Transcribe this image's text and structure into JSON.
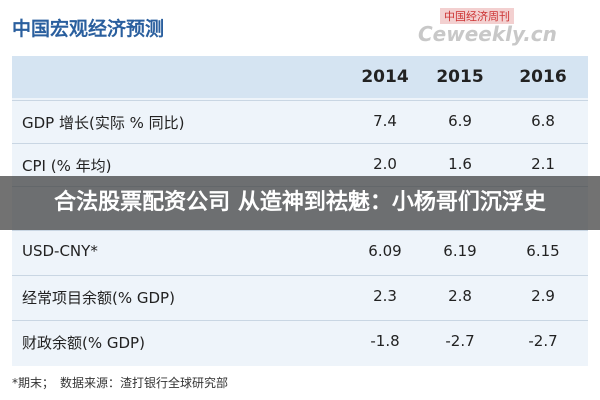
{
  "header": {
    "title": "中国宏观经济预测",
    "watermark_top": "中国经济周刊",
    "watermark": "Ceweekly.cn"
  },
  "table": {
    "columns": [
      "2014",
      "2015",
      "2016"
    ],
    "rows": [
      [
        "GDP 增长(实际 % 同比)",
        "7.4",
        "6.9",
        "6.8"
      ],
      [
        "CPI (% 年均)",
        "2.0",
        "1.6",
        "2.1"
      ],
      [
        "USD-CNY*",
        "6.09",
        "6.19",
        "6.15"
      ],
      [
        "经常项目余额(% GDP)",
        "2.3",
        "2.8",
        "2.9"
      ],
      [
        "财政余额(% GDP)",
        "-1.8",
        "-2.7",
        "-2.7"
      ]
    ]
  },
  "banner": "合法股票配资公司 从造神到祛魅：小杨哥们沉浮史",
  "footer": "*期末；　数据来源：渣打银行全球研究部"
}
